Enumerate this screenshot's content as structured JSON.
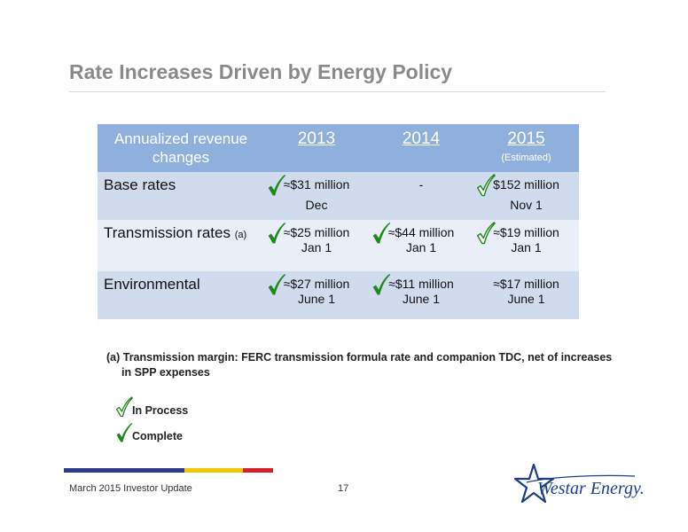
{
  "slide": {
    "title": "Rate Increases Driven by Energy Policy"
  },
  "table": {
    "header": {
      "corner": "Annualized revenue changes",
      "years": [
        "2013",
        "2014",
        "2015"
      ],
      "year3_sub": "(Estimated)"
    },
    "rows": [
      {
        "label": "Base rates",
        "note": "",
        "cells": [
          {
            "value": "≈$31 million",
            "date": "Dec",
            "status": "complete"
          },
          {
            "value": "-",
            "date": "",
            "status": "none"
          },
          {
            "value": "$152 million",
            "date": "Nov 1",
            "status": "in-process"
          }
        ]
      },
      {
        "label": "Transmission rates",
        "note": "(a)",
        "cells": [
          {
            "value": "≈$25 million",
            "date": "Jan 1",
            "status": "complete"
          },
          {
            "value": "≈$44 million",
            "date": "Jan 1",
            "status": "complete"
          },
          {
            "value": "≈$19 million",
            "date": "Jan 1",
            "status": "in-process"
          }
        ]
      },
      {
        "label": "Environmental",
        "note": "",
        "cells": [
          {
            "value": "≈$27 million",
            "date": "June 1",
            "status": "complete"
          },
          {
            "value": "≈$11 million",
            "date": "June 1",
            "status": "complete"
          },
          {
            "value": "≈$17 million",
            "date": "June 1",
            "status": "none"
          }
        ]
      }
    ]
  },
  "footnote": "(a) Transmission margin: FERC transmission formula rate and companion TDC, net of increases in SPP expenses",
  "legend": {
    "in_process": "In Process",
    "complete": "Complete"
  },
  "footer": {
    "left": "March 2015 Investor Update",
    "page": "17",
    "logo_text": "Westar Energy."
  },
  "colors": {
    "header_bg": "#8fb0dc",
    "row_dark": "#d0dbee",
    "row_light": "#e9eef7",
    "check_green": "#1e8a1e",
    "bar_blue": "#2b3a8f",
    "bar_yellow": "#f2c500",
    "bar_red": "#d6202a",
    "logo_blue": "#1c3f8a"
  }
}
